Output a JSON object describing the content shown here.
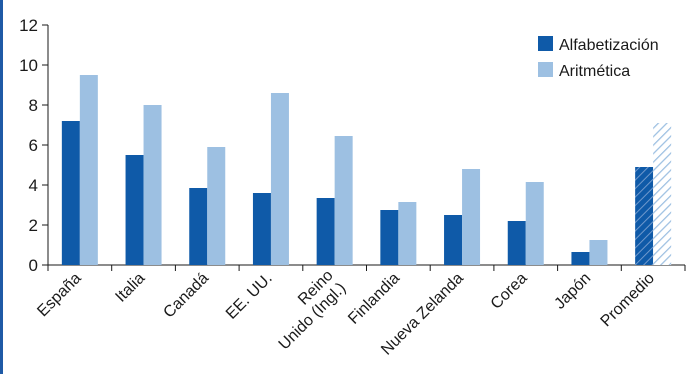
{
  "chart_data": {
    "type": "bar",
    "categories": [
      "España",
      "Italia",
      "Canadá",
      "EE. UU.",
      "Reino Unido (Ingl.)",
      "Finlandia",
      "Nueva Zelanda",
      "Corea",
      "Japón",
      "Promedio"
    ],
    "category_lines": [
      [
        "España"
      ],
      [
        "Italia"
      ],
      [
        "Canadá"
      ],
      [
        "EE. UU."
      ],
      [
        "Reino",
        "Unido (Ingl.)"
      ],
      [
        "Finlandia"
      ],
      [
        "Nueva Zelanda"
      ],
      [
        "Corea"
      ],
      [
        "Japón"
      ],
      [
        "Promedio"
      ]
    ],
    "series": [
      {
        "name": "Alfabetización",
        "values": [
          7.2,
          5.5,
          3.85,
          3.6,
          3.35,
          2.75,
          2.5,
          2.2,
          0.65,
          4.9
        ],
        "color": "#0f5aa8"
      },
      {
        "name": "Aritmética",
        "values": [
          9.5,
          8.0,
          5.9,
          8.6,
          6.45,
          3.15,
          4.8,
          4.15,
          1.25,
          7.1
        ],
        "color": "#9dc0e2"
      }
    ],
    "highlight_category": "Promedio",
    "highlight_style": "hatched",
    "ylim": [
      0,
      12
    ],
    "yticks": [
      0,
      2,
      4,
      6,
      8,
      10,
      12
    ],
    "legend_position": "top-right",
    "grid": false,
    "title": "",
    "xlabel": "",
    "ylabel": ""
  }
}
